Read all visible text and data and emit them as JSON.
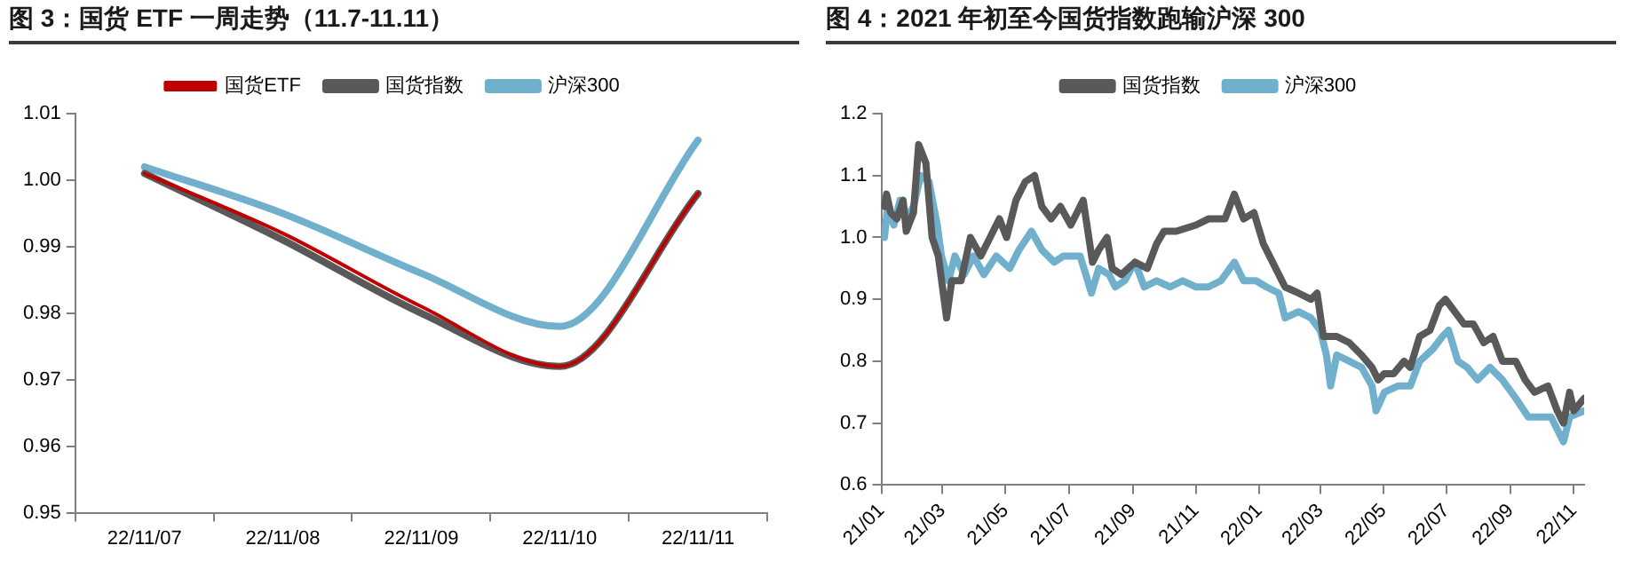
{
  "chart_data": [
    {
      "type": "line",
      "title": "图 3：国货 ETF 一周走势（11.7-11.11）",
      "categories": [
        "22/11/07",
        "22/11/08",
        "22/11/09",
        "22/11/10",
        "22/11/11"
      ],
      "series": [
        {
          "name": "国货ETF",
          "color": "#c00000",
          "values": [
            1.001,
            0.992,
            0.981,
            0.972,
            0.998
          ]
        },
        {
          "name": "国货指数",
          "color": "#595959",
          "values": [
            1.001,
            0.991,
            0.98,
            0.972,
            0.998
          ]
        },
        {
          "name": "沪深300",
          "color": "#70b0cc",
          "values": [
            1.002,
            0.995,
            0.986,
            0.978,
            1.006
          ]
        }
      ],
      "ylim": [
        0.95,
        1.01
      ],
      "yticks": [
        0.95,
        0.96,
        0.97,
        0.98,
        0.99,
        {
          "value": 1,
          "label": "1.00"
        },
        1.01
      ],
      "legend": "top",
      "grid": false,
      "marker": "none"
    },
    {
      "type": "line",
      "title": "图 4：2021 年初至今国货指数跑输沪深 300",
      "series": [
        {
          "name": "国货指数",
          "color": "#595959",
          "x": [
            "2021-01-04",
            "2021-01-06",
            "2021-01-10",
            "2021-01-16",
            "2021-01-22",
            "2021-01-25",
            "2021-02-01",
            "2021-02-06",
            "2021-02-13",
            "2021-02-19",
            "2021-02-25",
            "2021-03-05",
            "2021-03-10",
            "2021-03-19",
            "2021-03-28",
            "2021-04-07",
            "2021-04-16",
            "2021-04-25",
            "2021-05-02",
            "2021-05-11",
            "2021-05-20",
            "2021-05-29",
            "2021-06-05",
            "2021-06-14",
            "2021-06-23",
            "2021-07-03",
            "2021-07-15",
            "2021-07-24",
            "2021-07-30",
            "2021-08-07",
            "2021-08-12",
            "2021-08-21",
            "2021-09-03",
            "2021-09-15",
            "2021-09-24",
            "2021-10-01",
            "2021-10-13",
            "2021-11-01",
            "2021-11-13",
            "2021-11-29",
            "2021-12-08",
            "2021-12-17",
            "2021-12-27",
            "2022-01-05",
            "2022-01-14",
            "2022-01-26",
            "2022-02-08",
            "2022-02-20",
            "2022-02-26",
            "2022-03-04",
            "2022-03-17",
            "2022-03-29",
            "2022-04-10",
            "2022-04-20",
            "2022-04-26",
            "2022-05-02",
            "2022-05-11",
            "2022-05-21",
            "2022-05-27",
            "2022-06-05",
            "2022-06-15",
            "2022-06-24",
            "2022-06-30",
            "2022-07-09",
            "2022-07-18",
            "2022-07-27",
            "2022-08-06",
            "2022-08-15",
            "2022-08-24",
            "2022-09-06",
            "2022-09-15",
            "2022-09-24",
            "2022-10-07",
            "2022-10-16",
            "2022-10-22",
            "2022-10-28",
            "2022-11-01",
            "2022-11-11"
          ],
          "values": [
            1.05,
            1.07,
            1.04,
            1.03,
            1.06,
            1.01,
            1.04,
            1.15,
            1.12,
            1.0,
            0.97,
            0.87,
            0.93,
            0.93,
            1.0,
            0.97,
            1.0,
            1.03,
            1.0,
            1.06,
            1.09,
            1.1,
            1.05,
            1.03,
            1.05,
            1.02,
            1.06,
            0.96,
            0.98,
            1.0,
            0.95,
            0.94,
            0.96,
            0.95,
            0.99,
            1.01,
            1.01,
            1.02,
            1.03,
            1.03,
            1.07,
            1.03,
            1.04,
            0.99,
            0.96,
            0.92,
            0.91,
            0.9,
            0.91,
            0.84,
            0.84,
            0.83,
            0.81,
            0.79,
            0.77,
            0.78,
            0.78,
            0.8,
            0.79,
            0.84,
            0.85,
            0.89,
            0.9,
            0.88,
            0.86,
            0.86,
            0.83,
            0.84,
            0.8,
            0.8,
            0.77,
            0.75,
            0.76,
            0.72,
            0.7,
            0.75,
            0.72,
            0.74
          ]
        },
        {
          "name": "沪深300",
          "color": "#70b0cc",
          "x": [
            "2021-01-04",
            "2021-01-07",
            "2021-01-13",
            "2021-01-19",
            "2021-01-25",
            "2021-02-01",
            "2021-02-08",
            "2021-02-16",
            "2021-02-24",
            "2021-02-28",
            "2021-03-07",
            "2021-03-13",
            "2021-03-22",
            "2021-03-31",
            "2021-04-10",
            "2021-04-22",
            "2021-05-05",
            "2021-05-14",
            "2021-05-26",
            "2021-06-05",
            "2021-06-17",
            "2021-06-26",
            "2021-07-12",
            "2021-07-23",
            "2021-07-30",
            "2021-08-09",
            "2021-08-15",
            "2021-08-24",
            "2021-09-03",
            "2021-09-12",
            "2021-09-24",
            "2021-10-07",
            "2021-10-19",
            "2021-11-01",
            "2021-11-13",
            "2021-11-25",
            "2021-12-08",
            "2021-12-17",
            "2021-12-29",
            "2022-01-08",
            "2022-01-20",
            "2022-01-26",
            "2022-02-08",
            "2022-02-20",
            "2022-03-01",
            "2022-03-07",
            "2022-03-11",
            "2022-03-17",
            "2022-03-29",
            "2022-04-10",
            "2022-04-20",
            "2022-04-24",
            "2022-05-02",
            "2022-05-15",
            "2022-05-27",
            "2022-06-05",
            "2022-06-18",
            "2022-06-27",
            "2022-07-03",
            "2022-07-12",
            "2022-07-21",
            "2022-07-31",
            "2022-08-12",
            "2022-08-24",
            "2022-09-06",
            "2022-09-18",
            "2022-10-01",
            "2022-10-10",
            "2022-10-22",
            "2022-10-28",
            "2022-11-11"
          ],
          "values": [
            1.0,
            1.05,
            1.02,
            1.06,
            1.03,
            1.05,
            1.1,
            1.09,
            1.02,
            0.97,
            0.93,
            0.97,
            0.94,
            0.97,
            0.94,
            0.97,
            0.95,
            0.98,
            1.01,
            0.98,
            0.96,
            0.97,
            0.97,
            0.91,
            0.95,
            0.94,
            0.92,
            0.93,
            0.96,
            0.92,
            0.93,
            0.92,
            0.93,
            0.92,
            0.92,
            0.93,
            0.96,
            0.93,
            0.93,
            0.92,
            0.91,
            0.87,
            0.88,
            0.87,
            0.85,
            0.81,
            0.76,
            0.81,
            0.8,
            0.79,
            0.76,
            0.72,
            0.75,
            0.76,
            0.76,
            0.8,
            0.82,
            0.84,
            0.85,
            0.8,
            0.79,
            0.77,
            0.79,
            0.77,
            0.74,
            0.71,
            0.71,
            0.71,
            0.67,
            0.71,
            0.72
          ]
        }
      ],
      "xlim": [
        "2021-01-01",
        "2022-11-11"
      ],
      "xticks": [
        {
          "value": "2021-01-01",
          "label": "21/01"
        },
        {
          "value": "2021-03-01",
          "label": "21/03"
        },
        {
          "value": "2021-05-01",
          "label": "21/05"
        },
        {
          "value": "2021-07-01",
          "label": "21/07"
        },
        {
          "value": "2021-09-01",
          "label": "21/09"
        },
        {
          "value": "2021-11-01",
          "label": "21/11"
        },
        {
          "value": "2022-01-01",
          "label": "22/01"
        },
        {
          "value": "2022-03-01",
          "label": "22/03"
        },
        {
          "value": "2022-05-01",
          "label": "22/05"
        },
        {
          "value": "2022-07-01",
          "label": "22/07"
        },
        {
          "value": "2022-09-01",
          "label": "22/09"
        },
        {
          "value": "2022-11-01",
          "label": "22/11"
        }
      ],
      "ylim": [
        0.6,
        1.2
      ],
      "yticks": [
        0.6,
        0.7,
        0.8,
        0.9,
        {
          "value": 1,
          "label": "1.0"
        },
        1.1,
        1.2
      ],
      "legend": "top",
      "grid": false,
      "marker": "none"
    }
  ]
}
